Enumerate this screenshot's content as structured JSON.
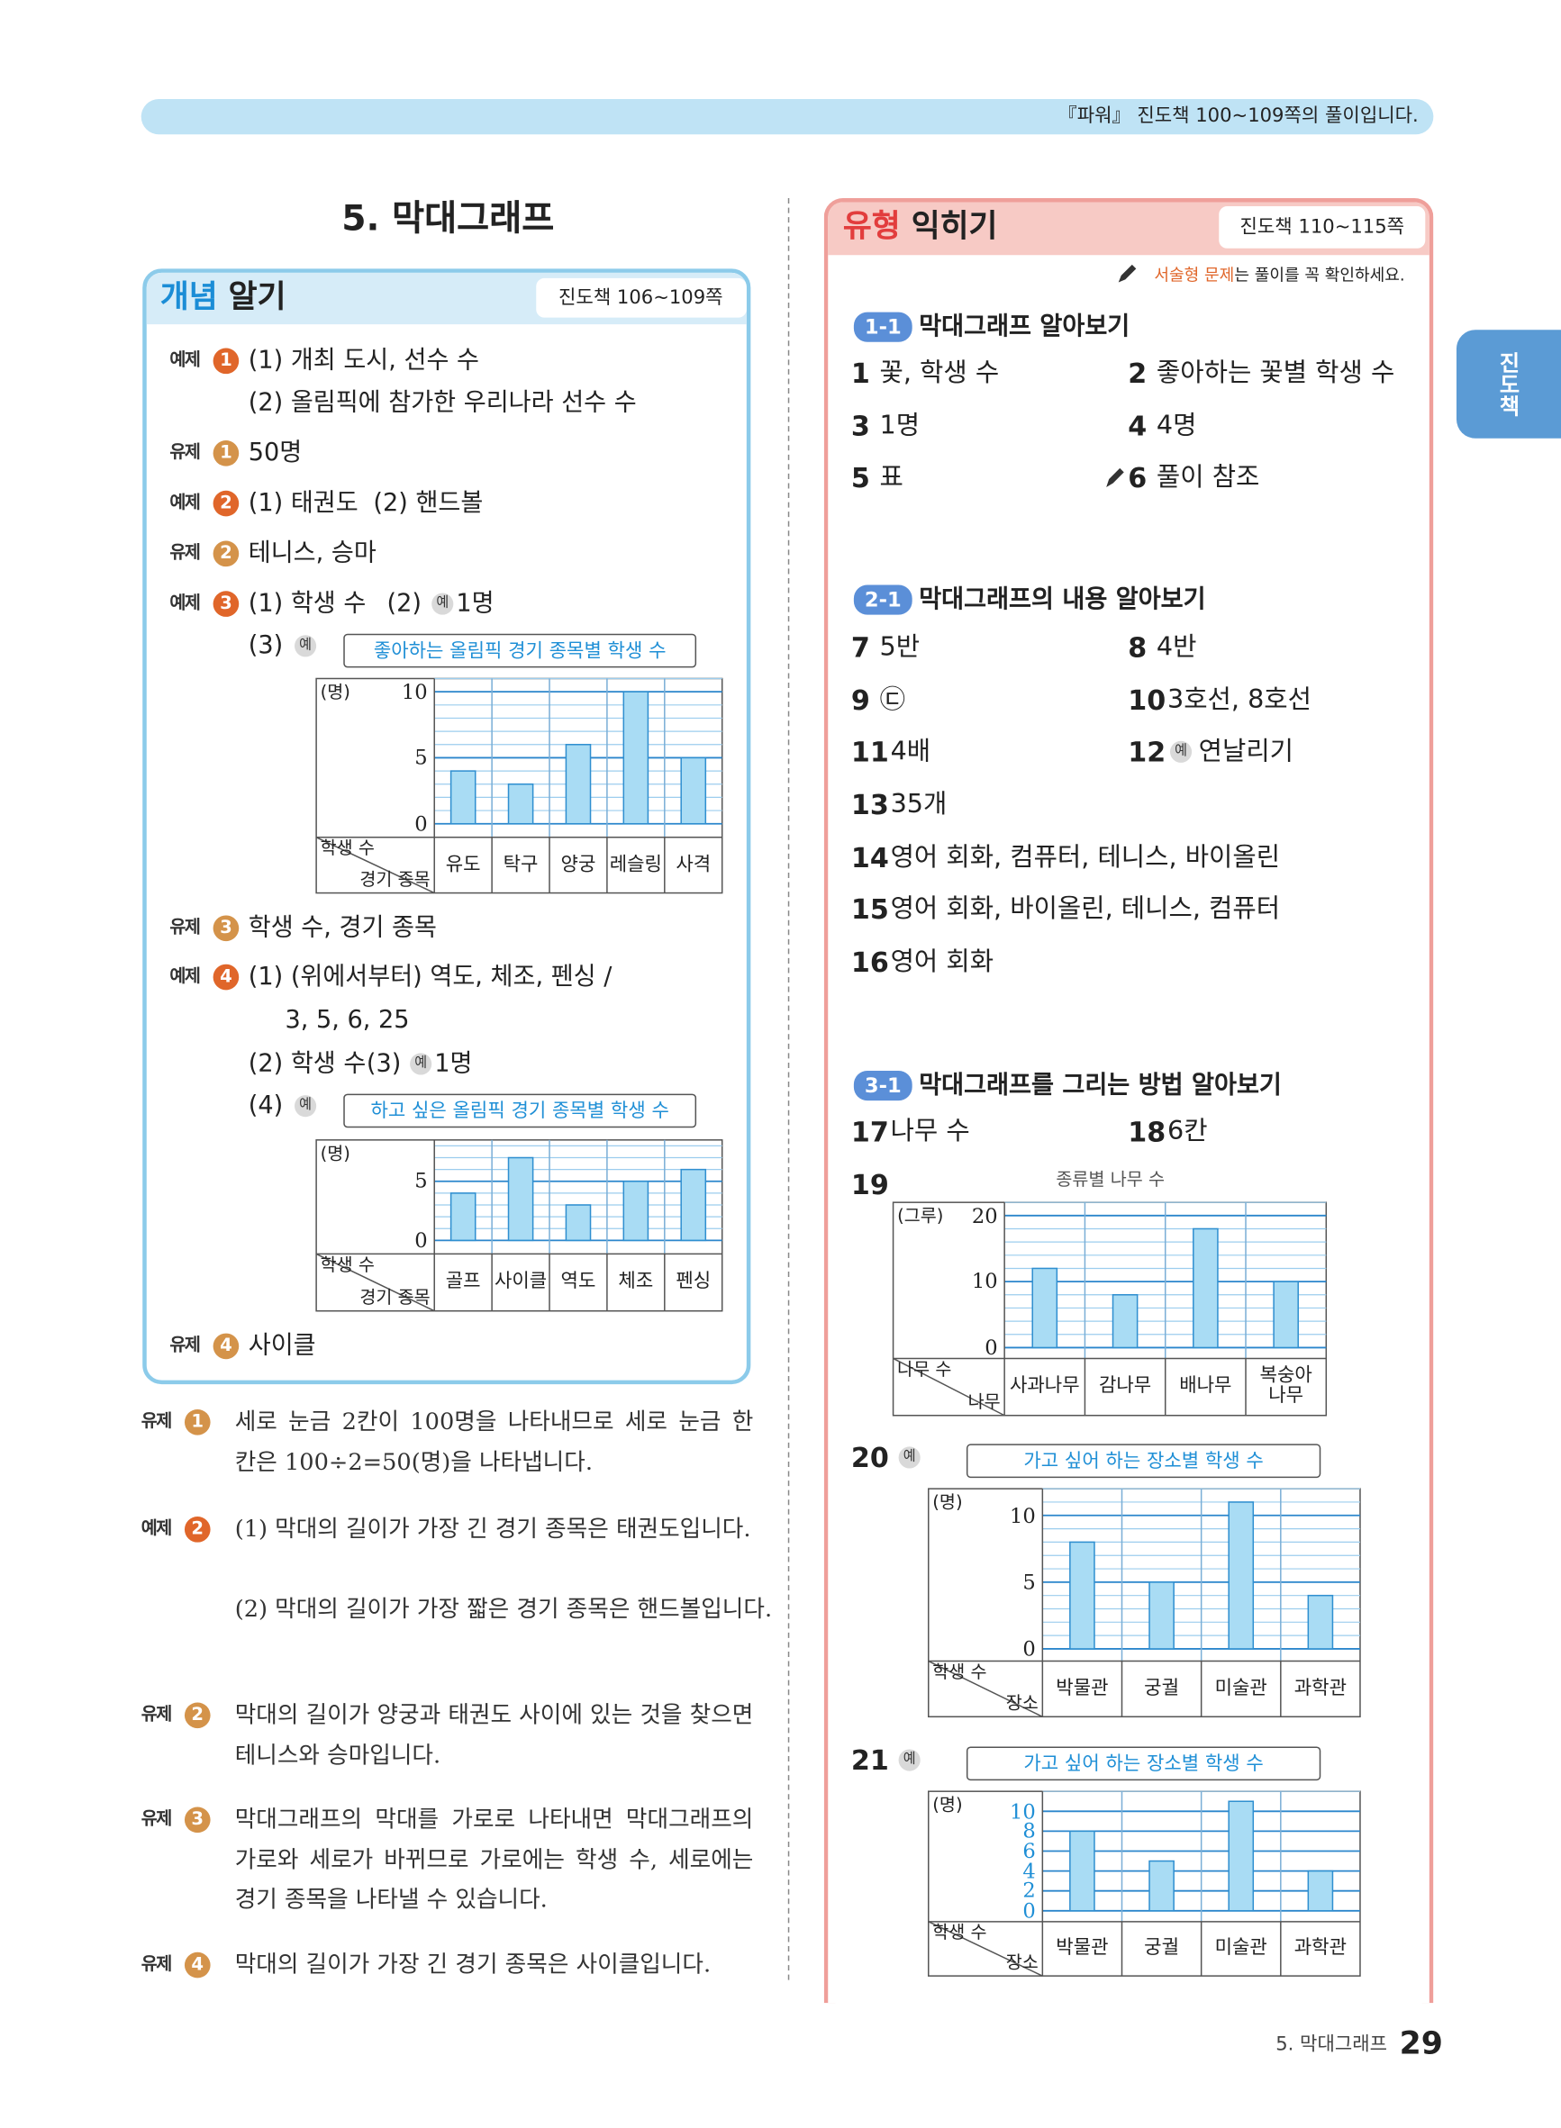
{
  "header": {
    "note": "『파워』 진도책 100~109쪽의 풀이입니다."
  },
  "example_mark": "예",
  "side_tab": "진도책",
  "badge_colors": {
    "예제": "#e0662a",
    "유제": "#d4934a"
  },
  "left": {
    "title": "5. 막대그래프",
    "section_tag": "개념",
    "section_word": "알기",
    "pages": "진도책 106~109쪽",
    "answers": [
      {
        "label": "예제",
        "num": "1",
        "text": [
          "(1) 개최 도시, 선수 수",
          "(2) 올림픽에 참가한 우리나라 선수 수"
        ]
      },
      {
        "label": "유제",
        "num": "1",
        "text": [
          "50명"
        ]
      },
      {
        "label": "예제",
        "num": "2",
        "text": [
          "(1) 태권도",
          "(2) 핸드볼"
        ]
      },
      {
        "label": "유제",
        "num": "2",
        "text": [
          "테니스, 승마"
        ]
      },
      {
        "label": "예제",
        "num": "3",
        "text": [
          "(1) 학생 수",
          "(2)",
          "1명",
          "(3)"
        ]
      },
      {
        "label": "유제",
        "num": "3",
        "text": [
          "학생 수, 경기 종목"
        ]
      },
      {
        "label": "예제",
        "num": "4",
        "text": [
          "(1) (위에서부터) 역도, 체조, 펜싱 /",
          "3, 5, 6, 25",
          "(2) 학생 수",
          "(3)",
          "1명",
          "(4)"
        ]
      },
      {
        "label": "유제",
        "num": "4",
        "text": [
          "사이클"
        ]
      }
    ]
  },
  "explanations": [
    {
      "label": "유제",
      "num": "1",
      "text": [
        "세로 눈금 2칸이 100명을 나타내므로 세로 눈금 한 칸은 100÷2=50(명)을 나타냅니다."
      ]
    },
    {
      "label": "예제",
      "num": "2",
      "text": [
        "(1) 막대의 길이가 가장 긴 경기 종목은 태권도입니다.",
        "(2) 막대의 길이가 가장 짧은 경기 종목은 핸드볼입니다."
      ]
    },
    {
      "label": "유제",
      "num": "2",
      "text": [
        "막대의 길이가 양궁과 태권도 사이에 있는 것을 찾으면 테니스와 승마입니다."
      ]
    },
    {
      "label": "유제",
      "num": "3",
      "text": [
        "막대그래프의 막대를 가로로 나타내면 막대그래프의 가로와 세로가 바뀌므로 가로에는 학생 수, 세로에는 경기 종목을 나타낼 수 있습니다."
      ]
    },
    {
      "label": "유제",
      "num": "4",
      "text": [
        "막대의 길이가 가장 긴 경기 종목은 사이클입니다."
      ]
    }
  ],
  "right": {
    "section_tag": "유형",
    "section_word": "익히기",
    "pages": "진도책 110~115쪽",
    "note_em": "서술형 문제",
    "note": "는 풀이를 꼭 확인하세요.",
    "groups": [
      {
        "tag": "1-1",
        "title": "막대그래프 알아보기",
        "answers": [
          {
            "num": "1",
            "text": "꽃, 학생 수"
          },
          {
            "num": "2",
            "text": "좋아하는 꽃별 학생 수"
          },
          {
            "num": "3",
            "text": "1명"
          },
          {
            "num": "4",
            "text": "4명"
          },
          {
            "num": "5",
            "text": "표"
          },
          {
            "num": "6",
            "text": "풀이 참조"
          }
        ]
      },
      {
        "tag": "2-1",
        "title": "막대그래프의 내용 알아보기",
        "answers": [
          {
            "num": "7",
            "text": "5반"
          },
          {
            "num": "8",
            "text": "4반"
          },
          {
            "num": "9",
            "text": "㉢"
          },
          {
            "num": "10",
            "text": "3호선, 8호선"
          },
          {
            "num": "11",
            "text": "4배"
          },
          {
            "num": "12",
            "text": "연날리기"
          },
          {
            "num": "13",
            "text": "35개"
          },
          {
            "num": "14",
            "text": "영어 회화, 컴퓨터, 테니스, 바이올린"
          },
          {
            "num": "15",
            "text": "영어 회화, 바이올린, 테니스, 컴퓨터"
          },
          {
            "num": "16",
            "text": "영어 회화"
          }
        ]
      },
      {
        "tag": "3-1",
        "title": "막대그래프를 그리는 방법 알아보기",
        "answers": [
          {
            "num": "17",
            "text": "나무 수"
          },
          {
            "num": "18",
            "text": "6칸"
          },
          {
            "num": "19"
          },
          {
            "num": "20"
          },
          {
            "num": "21"
          }
        ]
      }
    ]
  },
  "footer": {
    "chapter": "5. 막대그래프",
    "page": "29"
  },
  "chart_data": [
    {
      "type": "bar",
      "title": "좋아하는 올림픽 경기 종목별 학생 수",
      "y_unit": "(명)",
      "corner_y": "학생 수",
      "corner_x": "경기 종목",
      "categories": [
        "유도",
        "탁구",
        "양궁",
        "레슬링",
        "사격"
      ],
      "values": [
        4,
        3,
        6,
        10,
        5
      ],
      "ylim": [
        0,
        11
      ],
      "yticks": [
        0,
        5,
        10
      ],
      "grid_lines": [
        0,
        1,
        2,
        3,
        4,
        5,
        6,
        7,
        8,
        9,
        10,
        11
      ],
      "color": "#a9dcf4",
      "bar_edge": "#2f8fd0"
    },
    {
      "type": "bar",
      "title": "하고 싶은 올림픽 경기 종목별 학생 수",
      "y_unit": "(명)",
      "corner_y": "학생 수",
      "corner_x": "경기 종목",
      "categories": [
        "골프",
        "사이클",
        "역도",
        "체조",
        "펜싱"
      ],
      "values": [
        4,
        7,
        3,
        5,
        6
      ],
      "ylim": [
        0,
        8.5
      ],
      "yticks": [
        0,
        5
      ],
      "grid_lines": [
        0,
        1,
        2,
        3,
        4,
        5,
        6,
        7,
        8
      ],
      "color": "#a9dcf4",
      "bar_edge": "#2f8fd0"
    },
    {
      "type": "bar",
      "title": "종류별 나무 수",
      "y_unit": "(그루)",
      "corner_y": "나무 수",
      "corner_x": "나무",
      "categories": [
        "사과나무",
        "감나무",
        "배나무",
        "복숭아\n나무"
      ],
      "values": [
        12,
        8,
        18,
        10
      ],
      "ylim": [
        0,
        22
      ],
      "yticks": [
        0,
        10,
        20
      ],
      "grid_lines": [
        0,
        2,
        4,
        6,
        8,
        10,
        12,
        14,
        16,
        18,
        20,
        22
      ],
      "color": "#a9dcf4",
      "bar_edge": "#2f8fd0"
    },
    {
      "type": "bar",
      "title": "가고 싶어 하는 장소별 학생 수",
      "y_unit": "(명)",
      "corner_y": "학생 수",
      "corner_x": "장소",
      "categories": [
        "박물관",
        "궁궐",
        "미술관",
        "과학관"
      ],
      "values": [
        8,
        5,
        11,
        4
      ],
      "ylim": [
        0,
        12
      ],
      "yticks": [
        0,
        5,
        10
      ],
      "grid_lines": [
        0,
        1,
        2,
        3,
        4,
        5,
        6,
        7,
        8,
        9,
        10,
        11,
        12
      ],
      "color": "#a9dcf4",
      "bar_edge": "#2f8fd0"
    },
    {
      "type": "bar",
      "title": "가고 싶어 하는 장소별 학생 수",
      "y_unit": "(명)",
      "corner_y": "학생 수",
      "corner_x": "장소",
      "categories": [
        "박물관",
        "궁궐",
        "미술관",
        "과학관"
      ],
      "values": [
        8,
        5,
        11,
        4
      ],
      "ylim": [
        0,
        12
      ],
      "yticks": [
        0,
        2,
        4,
        6,
        8,
        10
      ],
      "grid_lines": [
        0,
        2,
        4,
        6,
        8,
        10,
        12
      ],
      "color": "#a9dcf4",
      "bar_edge": "#2f8fd0",
      "tick_color": "#1f8fd6"
    }
  ]
}
